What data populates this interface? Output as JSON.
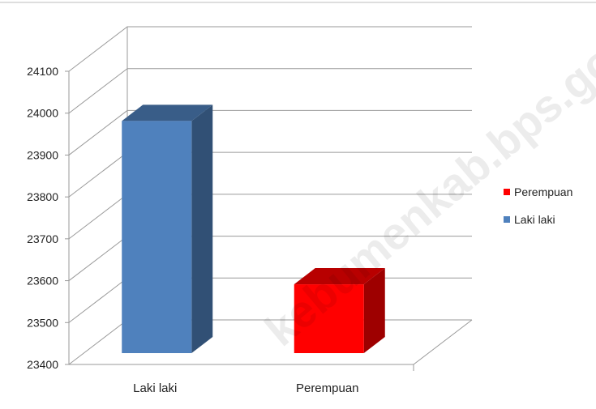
{
  "chart_data": {
    "type": "bar",
    "categories": [
      "Laki laki",
      "Perempuan"
    ],
    "series": [
      {
        "name": "Laki laki",
        "values": [
          24020,
          null
        ],
        "color": "#4F81BD"
      },
      {
        "name": "Perempuan",
        "values": [
          null,
          23630
        ],
        "color": "#FF0000"
      }
    ],
    "ylim": [
      23400,
      24100
    ],
    "yticks": [
      23400,
      23500,
      23600,
      23700,
      23800,
      23900,
      24000,
      24100
    ],
    "grid": true,
    "legend_position": "right",
    "legend": [
      "Perempuan",
      "Laki laki"
    ],
    "style": "3d-column"
  },
  "watermark": "kebumenkab.bps.go.id"
}
